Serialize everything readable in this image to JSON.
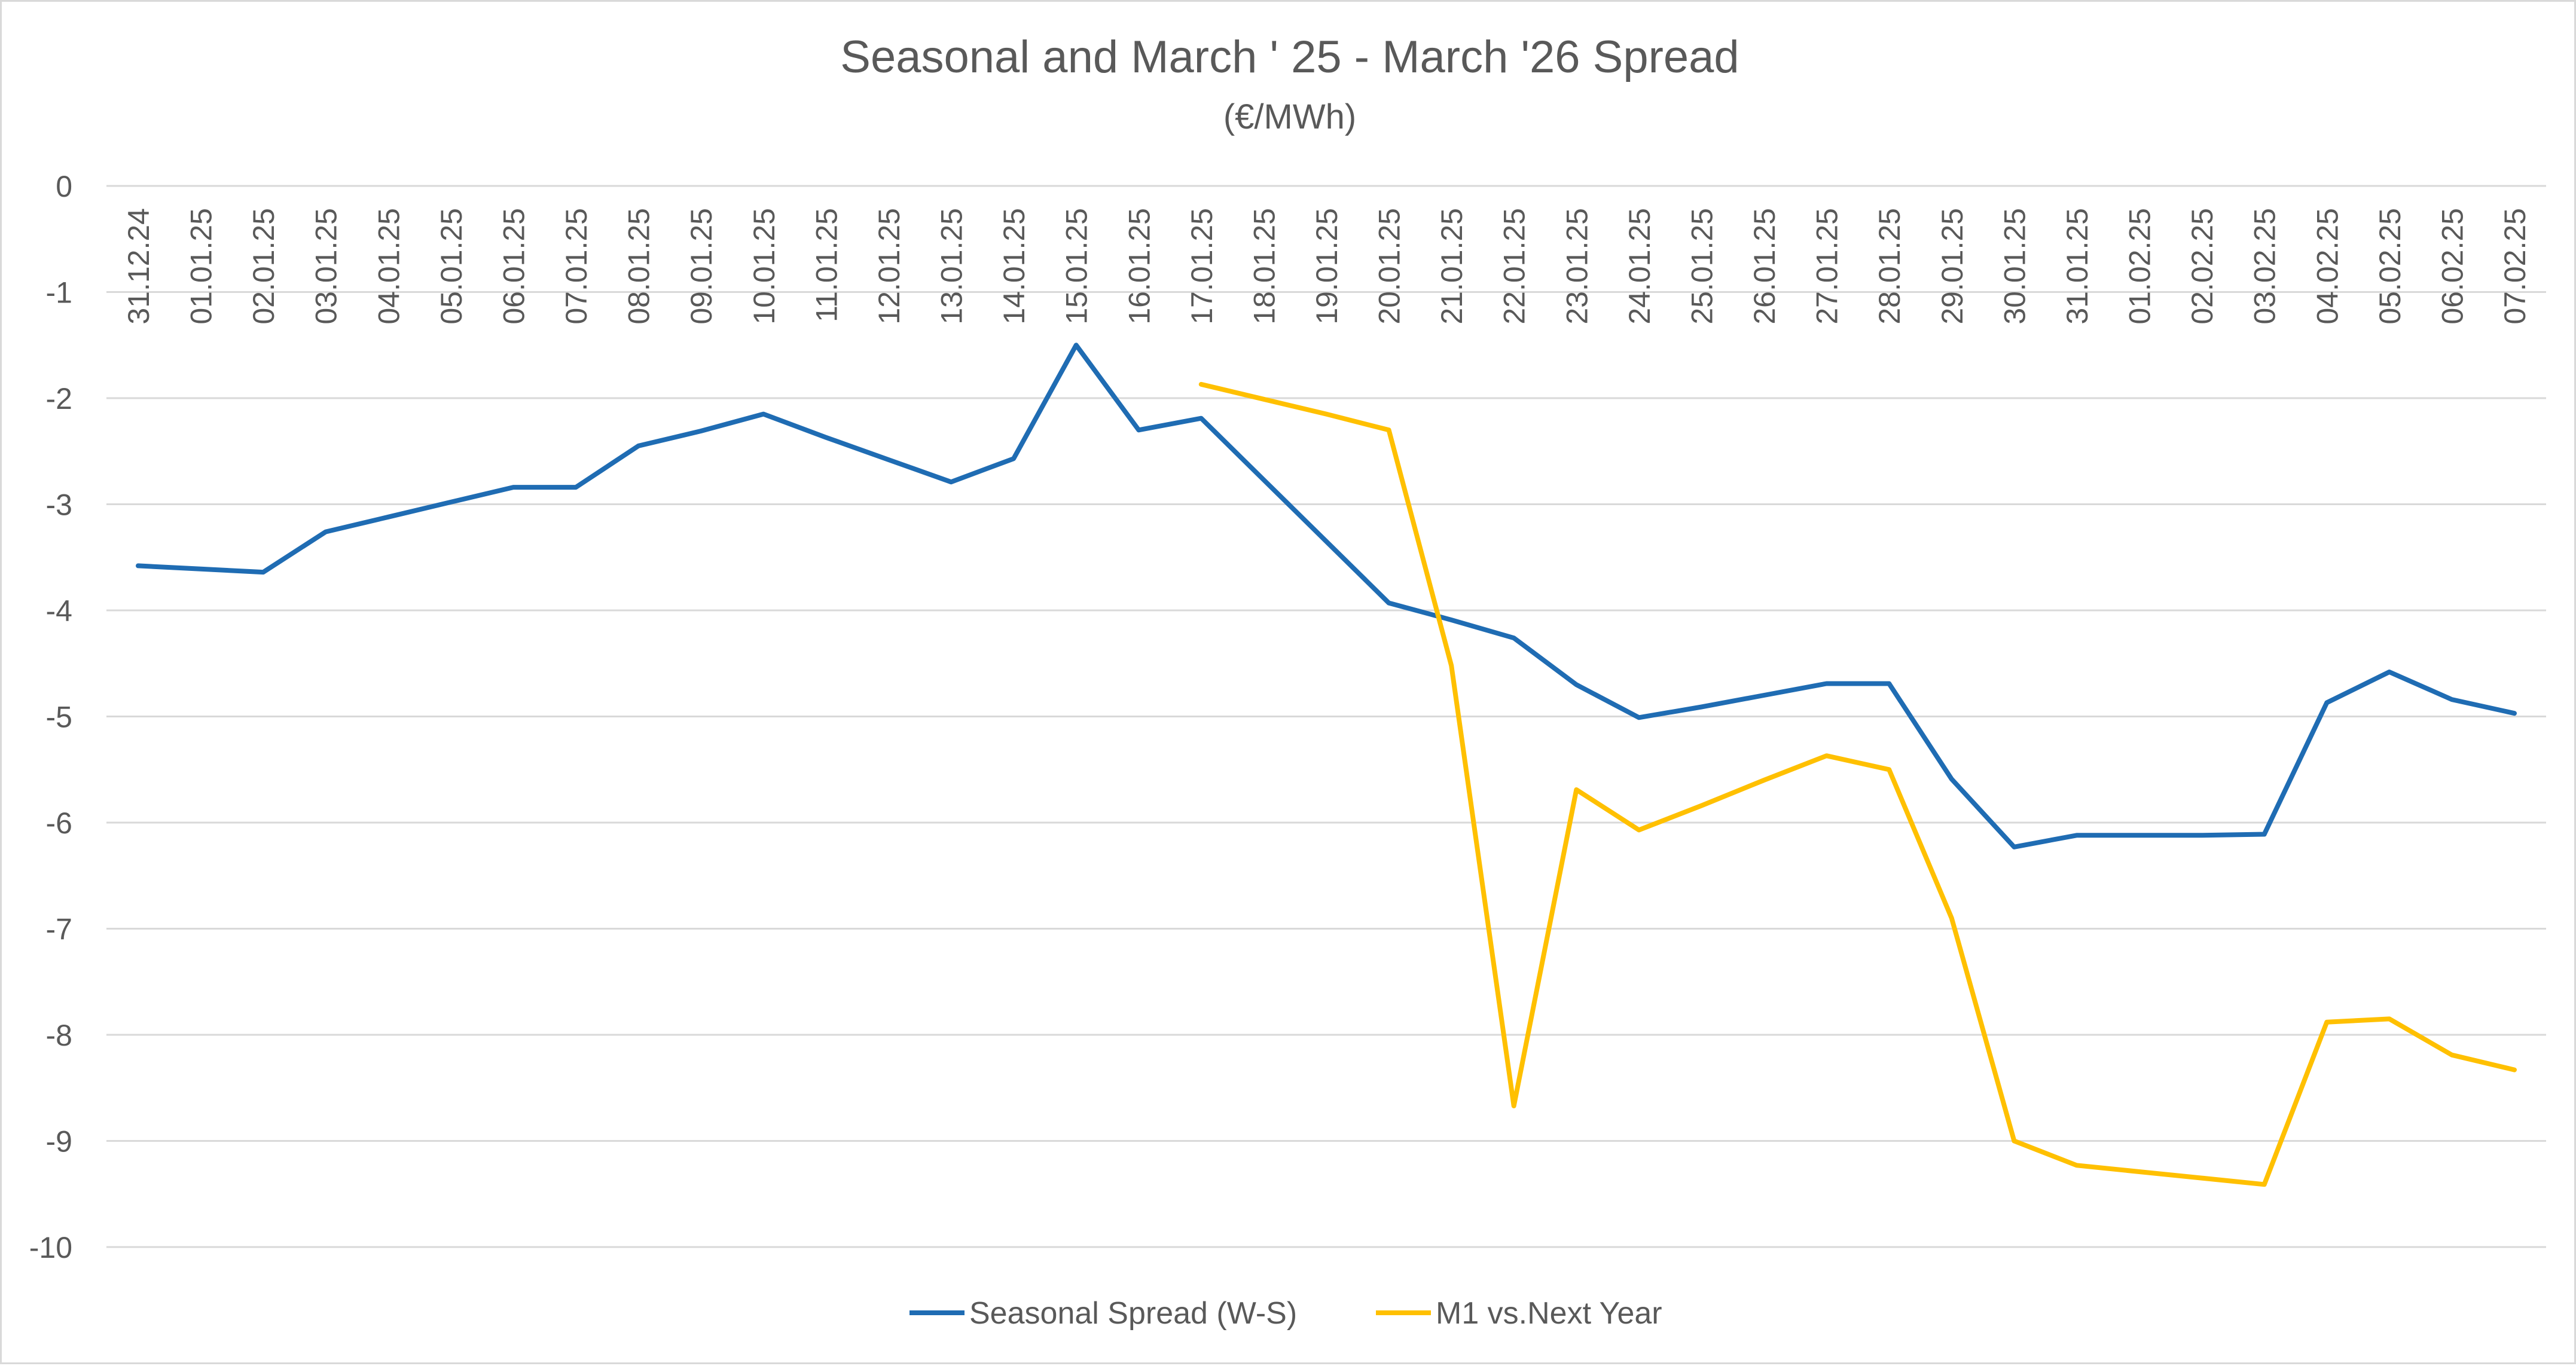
{
  "chart_data": {
    "type": "line",
    "title": "Seasonal and March ' 25 - March '26 Spread",
    "subtitle": "(€/MWh)",
    "ylim": [
      -10,
      0
    ],
    "y_ticks": [
      0,
      -1,
      -2,
      -3,
      -4,
      -5,
      -6,
      -7,
      -8,
      -9,
      -10
    ],
    "grid": true,
    "legend_position": "bottom",
    "x_position": "top",
    "categories": [
      "31.12.24",
      "01.01.25",
      "02.01.25",
      "03.01.25",
      "04.01.25",
      "05.01.25",
      "06.01.25",
      "07.01.25",
      "08.01.25",
      "09.01.25",
      "10.01.25",
      "11.01.25",
      "12.01.25",
      "13.01.25",
      "14.01.25",
      "15.01.25",
      "16.01.25",
      "17.01.25",
      "18.01.25",
      "19.01.25",
      "20.01.25",
      "21.01.25",
      "22.01.25",
      "23.01.25",
      "24.01.25",
      "25.01.25",
      "26.01.25",
      "27.01.25",
      "28.01.25",
      "29.01.25",
      "30.01.25",
      "31.01.25",
      "01.02.25",
      "02.02.25",
      "03.02.25",
      "04.02.25",
      "05.02.25",
      "06.02.25",
      "07.02.25"
    ],
    "series": [
      {
        "name": "Seasonal Spread (W-S)",
        "color": "#1f6cb3",
        "values": [
          -3.58,
          -3.61,
          -3.64,
          -3.26,
          -3.12,
          -2.98,
          -2.84,
          -2.84,
          -2.45,
          -2.31,
          -2.15,
          -2.37,
          -2.58,
          -2.79,
          -2.57,
          -1.5,
          -2.3,
          -2.19,
          -2.77,
          -3.35,
          -3.93,
          -4.09,
          -4.26,
          -4.7,
          -5.01,
          -4.91,
          -4.8,
          -4.69,
          -4.69,
          -5.59,
          -6.23,
          -6.12,
          -6.12,
          -6.12,
          -6.11,
          -4.87,
          -4.58,
          -4.84,
          -4.97
        ]
      },
      {
        "name": "M1 vs.Next Year",
        "color": "#ffc000",
        "values": [
          null,
          null,
          null,
          null,
          null,
          null,
          null,
          null,
          null,
          null,
          null,
          null,
          null,
          null,
          null,
          null,
          null,
          -1.87,
          -2.01,
          -2.15,
          -2.3,
          -4.52,
          -8.67,
          -5.69,
          -6.07,
          -5.84,
          -5.6,
          -5.37,
          -5.5,
          -6.9,
          -9.0,
          -9.23,
          -9.29,
          -9.35,
          -9.41,
          -7.88,
          -7.85,
          -8.19,
          -8.33
        ]
      }
    ]
  }
}
